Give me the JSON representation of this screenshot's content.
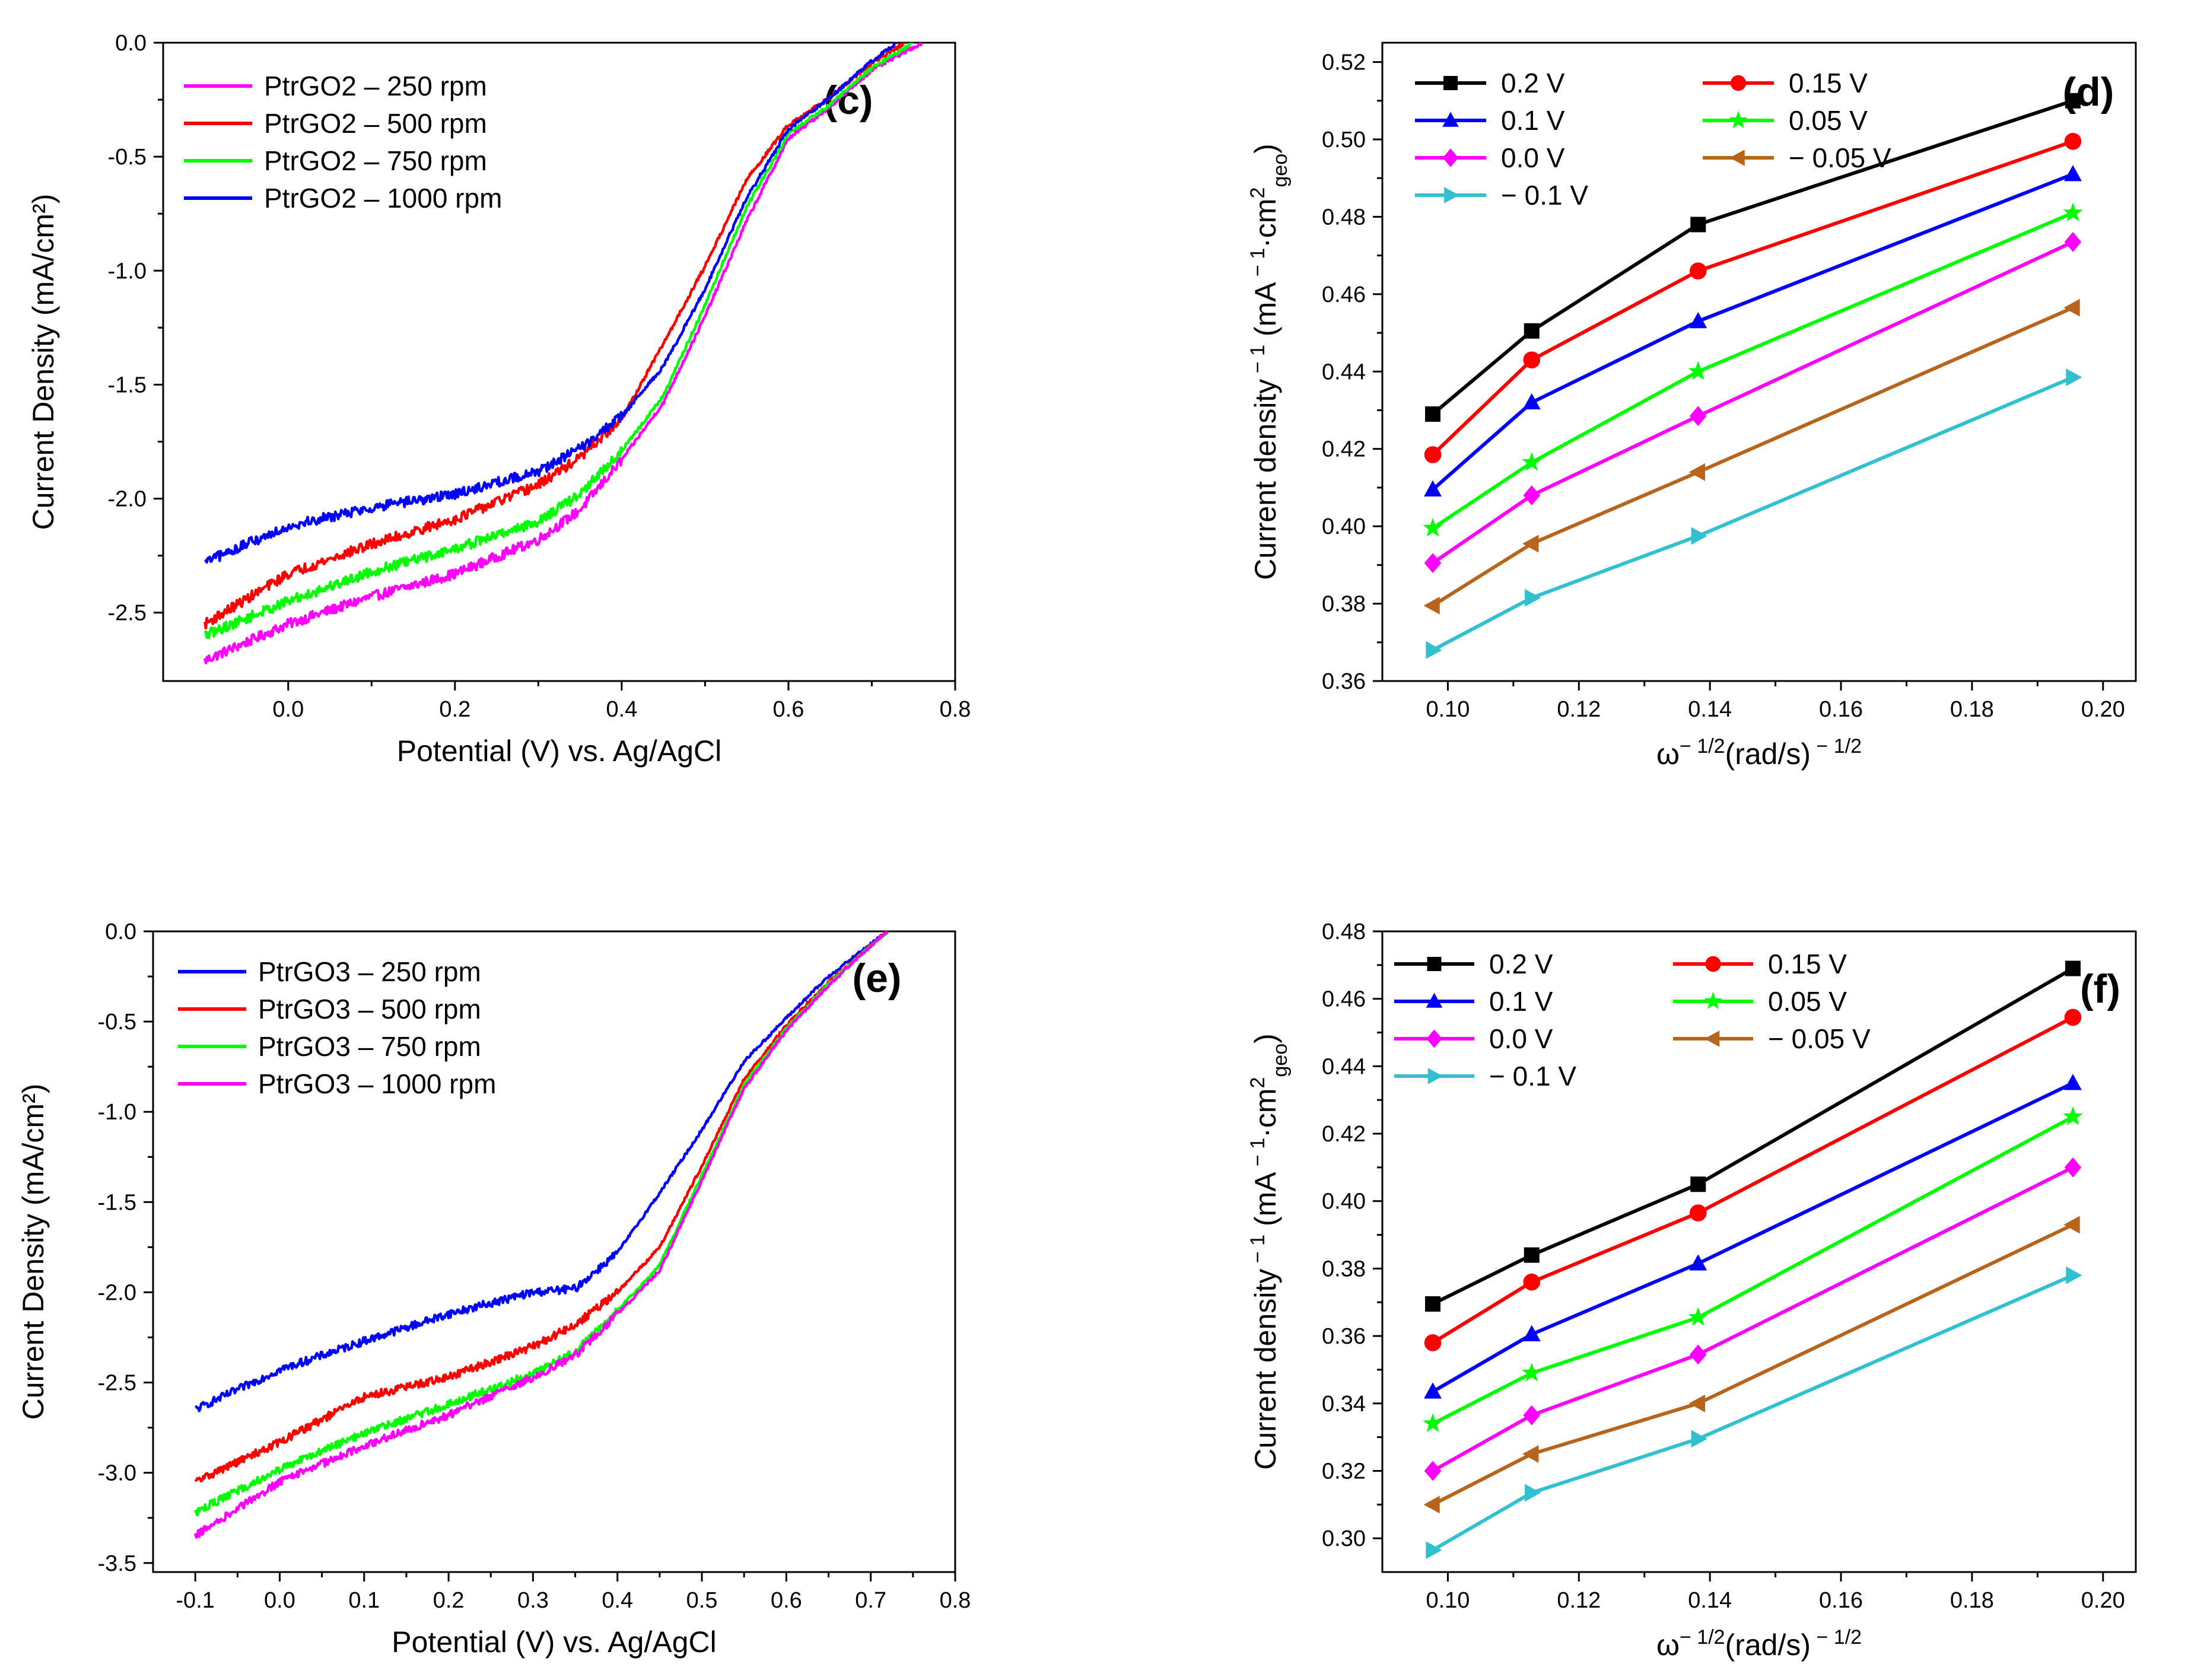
{
  "chart_data": [
    {
      "id": "c",
      "type": "line",
      "panel_label": "(c)",
      "xlabel": "Potential (V) vs. Ag/AgCl",
      "ylabel": "Current Density (mA/cm²)",
      "xlim": [
        -0.15,
        0.8
      ],
      "ylim": [
        -2.8,
        0.0
      ],
      "xticks": [
        "0.0",
        "0.2",
        "0.4",
        "0.6",
        "0.8"
      ],
      "xtick_values": [
        0.0,
        0.2,
        0.4,
        0.6,
        0.8
      ],
      "yticks": [
        "0.0",
        "-0.5",
        "-1.0",
        "-1.5",
        "-2.0",
        "-2.5"
      ],
      "ytick_values": [
        0.0,
        -0.5,
        -1.0,
        -1.5,
        -2.0,
        -2.5
      ],
      "legend_position": "top-left",
      "series": [
        {
          "name": "PtrGO2 – 250  rpm",
          "color": "#ff00ff",
          "x": [
            -0.1,
            0.0,
            0.1,
            0.2,
            0.3,
            0.35,
            0.4,
            0.45,
            0.5,
            0.55,
            0.6,
            0.65,
            0.7,
            0.76
          ],
          "y": [
            -2.71,
            -2.55,
            -2.43,
            -2.33,
            -2.18,
            -2.05,
            -1.83,
            -1.58,
            -1.2,
            -0.78,
            -0.42,
            -0.28,
            -0.12,
            0.0
          ]
        },
        {
          "name": "PtrGO2 – 500  rpm",
          "color": "#ff0000",
          "x": [
            -0.1,
            0.0,
            0.1,
            0.2,
            0.3,
            0.35,
            0.4,
            0.45,
            0.5,
            0.55,
            0.6,
            0.65,
            0.7,
            0.74
          ],
          "y": [
            -2.55,
            -2.33,
            -2.2,
            -2.09,
            -1.94,
            -1.82,
            -1.65,
            -1.32,
            -0.98,
            -0.6,
            -0.36,
            -0.24,
            -0.09,
            0.0
          ]
        },
        {
          "name": "PtrGO2 – 750  rpm",
          "color": "#00ff00",
          "x": [
            -0.1,
            0.0,
            0.1,
            0.2,
            0.3,
            0.35,
            0.4,
            0.45,
            0.5,
            0.55,
            0.6,
            0.65,
            0.7,
            0.75
          ],
          "y": [
            -2.6,
            -2.45,
            -2.32,
            -2.22,
            -2.1,
            -1.98,
            -1.79,
            -1.55,
            -1.15,
            -0.72,
            -0.4,
            -0.27,
            -0.11,
            0.0
          ]
        },
        {
          "name": "PtrGO2 – 1000 rpm",
          "color": "#0000ff",
          "x": [
            -0.1,
            0.0,
            0.1,
            0.2,
            0.3,
            0.35,
            0.4,
            0.45,
            0.5,
            0.55,
            0.6,
            0.65,
            0.7,
            0.73
          ],
          "y": [
            -2.28,
            -2.12,
            -2.04,
            -1.98,
            -1.88,
            -1.78,
            -1.64,
            -1.42,
            -1.08,
            -0.68,
            -0.38,
            -0.24,
            -0.08,
            0.0
          ]
        }
      ]
    },
    {
      "id": "d",
      "type": "line",
      "panel_label": "(d)",
      "xlabel_base": "ω",
      "xlabel_sup1": "− 1/2",
      "xlabel_mid": "(rad/s)",
      "xlabel_sup2": " − 1/2",
      "ylabel_base": "Current density",
      "ylabel_sup1": " − 1",
      "ylabel_mid1": " (mA",
      "ylabel_sup2": " − 1",
      "ylabel_mid2": "·cm",
      "ylabel_sup3": "2",
      "ylabel_sub": "geo",
      "ylabel_end": ")",
      "xlim": [
        0.09,
        0.205
      ],
      "ylim": [
        0.36,
        0.525
      ],
      "xticks": [
        "0.10",
        "0.12",
        "0.14",
        "0.16",
        "0.18",
        "0.20"
      ],
      "xtick_values": [
        0.1,
        0.12,
        0.14,
        0.16,
        0.18,
        0.2
      ],
      "yticks": [
        "0.36",
        "0.38",
        "0.40",
        "0.42",
        "0.44",
        "0.46",
        "0.48",
        "0.50",
        "0.52"
      ],
      "ytick_values": [
        0.36,
        0.38,
        0.4,
        0.42,
        0.44,
        0.46,
        0.48,
        0.5,
        0.52
      ],
      "legend_position": "top-left",
      "x": [
        0.0977,
        0.1128,
        0.1382,
        0.1954
      ],
      "series": [
        {
          "name": "0.2 V",
          "color": "#000000",
          "marker": "square",
          "values": [
            0.429,
            0.4505,
            0.478,
            0.51
          ]
        },
        {
          "name": "0.15 V",
          "color": "#ff0000",
          "marker": "circle",
          "values": [
            0.4185,
            0.443,
            0.466,
            0.4995
          ]
        },
        {
          "name": "0.1 V",
          "color": "#0000ff",
          "marker": "triangle-up",
          "values": [
            0.4095,
            0.432,
            0.453,
            0.491
          ]
        },
        {
          "name": "0.05 V",
          "color": "#00ff00",
          "marker": "star",
          "values": [
            0.3995,
            0.4165,
            0.44,
            0.481
          ]
        },
        {
          "name": "0.0 V",
          "color": "#ff00ff",
          "marker": "diamond",
          "values": [
            0.3905,
            0.408,
            0.4285,
            0.4735
          ]
        },
        {
          "name": "− 0.05 V",
          "color": "#b8651b",
          "marker": "triangle-left",
          "values": [
            0.3795,
            0.3955,
            0.414,
            0.4565
          ]
        },
        {
          "name": "− 0.1 V",
          "color": "#30c0d0",
          "marker": "triangle-right",
          "values": [
            0.368,
            0.3815,
            0.3975,
            0.4385
          ]
        }
      ]
    },
    {
      "id": "e",
      "type": "line",
      "panel_label": "(e)",
      "xlabel": "Potential (V) vs. Ag/AgCl",
      "ylabel": "Current Density (mA/cm²)",
      "xlim": [
        -0.15,
        0.8
      ],
      "ylim": [
        -3.55,
        0.0
      ],
      "xticks": [
        "-0.1",
        "0.0",
        "0.1",
        "0.2",
        "0.3",
        "0.4",
        "0.5",
        "0.6",
        "0.7",
        "0.8"
      ],
      "xtick_values": [
        -0.1,
        0.0,
        0.1,
        0.2,
        0.3,
        0.4,
        0.5,
        0.6,
        0.7,
        0.8
      ],
      "yticks": [
        "0.0",
        "-0.5",
        "-1.0",
        "-1.5",
        "-2.0",
        "-2.5",
        "-3.0",
        "-3.5"
      ],
      "ytick_values": [
        0.0,
        -0.5,
        -1.0,
        -1.5,
        -2.0,
        -2.5,
        -3.0,
        -3.5
      ],
      "legend_position": "top-left",
      "series": [
        {
          "name": "PtrGO3 – 250  rpm",
          "color": "#0000ff",
          "x": [
            -0.1,
            0.0,
            0.1,
            0.2,
            0.3,
            0.35,
            0.4,
            0.45,
            0.5,
            0.55,
            0.6,
            0.65,
            0.7,
            0.72
          ],
          "y": [
            -2.65,
            -2.43,
            -2.27,
            -2.12,
            -2.0,
            -1.98,
            -1.78,
            -1.45,
            -1.1,
            -0.72,
            -0.48,
            -0.25,
            -0.07,
            0.0
          ]
        },
        {
          "name": "PtrGO3 – 500  rpm",
          "color": "#ff0000",
          "x": [
            -0.1,
            0.0,
            0.1,
            0.2,
            0.3,
            0.35,
            0.4,
            0.45,
            0.5,
            0.55,
            0.6,
            0.65,
            0.7,
            0.72
          ],
          "y": [
            -3.05,
            -2.83,
            -2.58,
            -2.47,
            -2.3,
            -2.18,
            -2.0,
            -1.75,
            -1.3,
            -0.82,
            -0.52,
            -0.28,
            -0.08,
            0.0
          ]
        },
        {
          "name": "PtrGO3 – 750  rpm",
          "color": "#00ff00",
          "x": [
            -0.1,
            0.0,
            0.1,
            0.2,
            0.3,
            0.35,
            0.4,
            0.45,
            0.5,
            0.55,
            0.6,
            0.65,
            0.7,
            0.72
          ],
          "y": [
            -3.22,
            -2.98,
            -2.78,
            -2.62,
            -2.45,
            -2.33,
            -2.1,
            -1.85,
            -1.35,
            -0.85,
            -0.54,
            -0.29,
            -0.08,
            0.0
          ]
        },
        {
          "name": "PtrGO3 – 1000 rpm",
          "color": "#ff00ff",
          "x": [
            -0.1,
            0.0,
            0.1,
            0.2,
            0.3,
            0.35,
            0.4,
            0.45,
            0.5,
            0.55,
            0.6,
            0.65,
            0.7,
            0.72
          ],
          "y": [
            -3.35,
            -3.05,
            -2.85,
            -2.68,
            -2.47,
            -2.35,
            -2.12,
            -1.88,
            -1.38,
            -0.87,
            -0.55,
            -0.3,
            -0.08,
            0.0
          ]
        }
      ]
    },
    {
      "id": "f",
      "type": "line",
      "panel_label": "(f)",
      "xlabel_base": "ω",
      "xlabel_sup1": "− 1/2",
      "xlabel_mid": "(rad/s)",
      "xlabel_sup2": " − 1/2",
      "ylabel_base": "Current density",
      "ylabel_sup1": " − 1",
      "ylabel_mid1": " (mA",
      "ylabel_sup2": " − 1",
      "ylabel_mid2": "·cm",
      "ylabel_sup3": "2",
      "ylabel_sub": "geo",
      "ylabel_end": ")",
      "xlim": [
        0.09,
        0.205
      ],
      "ylim": [
        0.29,
        0.48
      ],
      "xticks": [
        "0.10",
        "0.12",
        "0.14",
        "0.16",
        "0.18",
        "0.20"
      ],
      "xtick_values": [
        0.1,
        0.12,
        0.14,
        0.16,
        0.18,
        0.2
      ],
      "yticks": [
        "0.30",
        "0.32",
        "0.34",
        "0.36",
        "0.38",
        "0.40",
        "0.42",
        "0.44",
        "0.46",
        "0.48"
      ],
      "ytick_values": [
        0.3,
        0.32,
        0.34,
        0.36,
        0.38,
        0.4,
        0.42,
        0.44,
        0.46,
        0.48
      ],
      "legend_position": "top-left",
      "x": [
        0.0977,
        0.1128,
        0.1382,
        0.1954
      ],
      "series": [
        {
          "name": "0.2 V",
          "color": "#000000",
          "marker": "square",
          "values": [
            0.3695,
            0.384,
            0.405,
            0.469
          ]
        },
        {
          "name": "0.15 V",
          "color": "#ff0000",
          "marker": "circle",
          "values": [
            0.358,
            0.376,
            0.3965,
            0.4545
          ]
        },
        {
          "name": "0.1 V",
          "color": "#0000ff",
          "marker": "triangle-up",
          "values": [
            0.3435,
            0.3605,
            0.3815,
            0.435
          ]
        },
        {
          "name": "0.05 V",
          "color": "#00ff00",
          "marker": "star",
          "values": [
            0.334,
            0.349,
            0.3655,
            0.425
          ]
        },
        {
          "name": "0.0 V",
          "color": "#ff00ff",
          "marker": "diamond",
          "values": [
            0.32,
            0.3365,
            0.3545,
            0.41
          ]
        },
        {
          "name": "− 0.05 V",
          "color": "#b8651b",
          "marker": "triangle-left",
          "values": [
            0.31,
            0.325,
            0.34,
            0.393
          ]
        },
        {
          "name": "− 0.1 V",
          "color": "#30c0d0",
          "marker": "triangle-right",
          "values": [
            0.2965,
            0.3135,
            0.3295,
            0.378
          ]
        }
      ]
    }
  ]
}
